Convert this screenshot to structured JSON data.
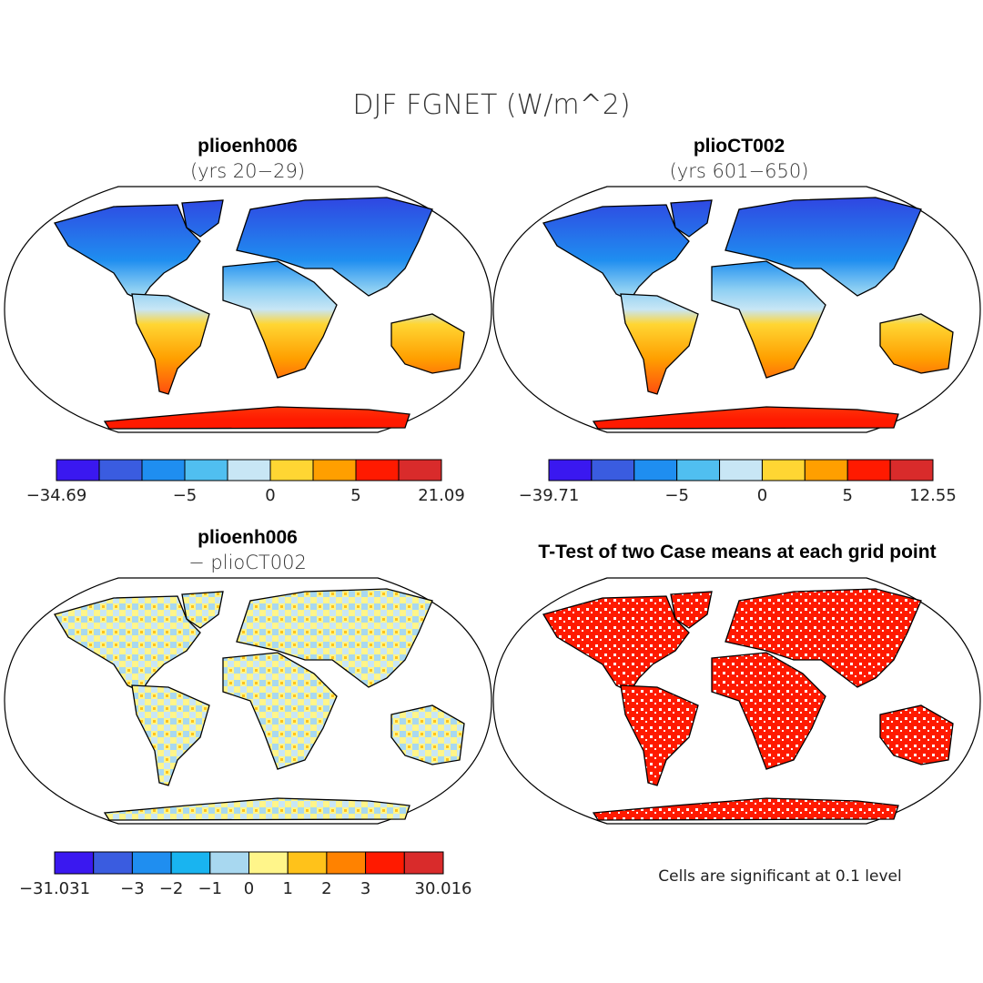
{
  "title": "DJF FGNET (W/m^2)",
  "panels": [
    {
      "title": "plioenh006",
      "subtitle": "(yrs 20−29)",
      "colorbar": {
        "colors": [
          "#3a18f0",
          "#3a5ce0",
          "#1f8ef0",
          "#50bff0",
          "#c8e6f5",
          "#ffd633",
          "#ff9f00",
          "#ff1a00",
          "#d92b2b"
        ],
        "ticks": [
          {
            "value": -34.69,
            "label": "−34.69"
          },
          null,
          null,
          {
            "value": -5,
            "label": "−5"
          },
          null,
          0,
          null,
          5,
          null,
          21.09
        ]
      }
    },
    {
      "title": "plioCT002",
      "subtitle": "(yrs 601−650)",
      "colorbar": {
        "colors": [
          "#3a18f0",
          "#3a5ce0",
          "#1f8ef0",
          "#50bff0",
          "#c8e6f5",
          "#ffd633",
          "#ff9f00",
          "#ff1a00",
          "#d92b2b"
        ],
        "ticks": [
          {
            "value": -39.71,
            "label": "−39.71"
          },
          null,
          null,
          {
            "value": -5,
            "label": "−5"
          },
          null,
          0,
          null,
          5,
          null,
          12.55
        ]
      }
    },
    {
      "title": "plioenh006",
      "subtitle": "− plioCT002",
      "colorbar": {
        "colors": [
          "#3a18f0",
          "#3a5ce0",
          "#1f8ef0",
          "#19b4f0",
          "#a8d8f0",
          "#fff58a",
          "#ffc21a",
          "#ff8200",
          "#ff1a00",
          "#d92b2b"
        ],
        "ticks": [
          {
            "value": -31.031,
            "label": "−31.031"
          },
          null,
          {
            "value": -3,
            "label": "−3"
          },
          {
            "value": -2,
            "label": "−2"
          },
          {
            "value": -1,
            "label": "−1"
          },
          0,
          1,
          2,
          3,
          null,
          30.016
        ]
      }
    },
    {
      "title": "T-Test of two Case means at each grid point",
      "note": "Cells are significant at 0.1 level"
    }
  ]
}
